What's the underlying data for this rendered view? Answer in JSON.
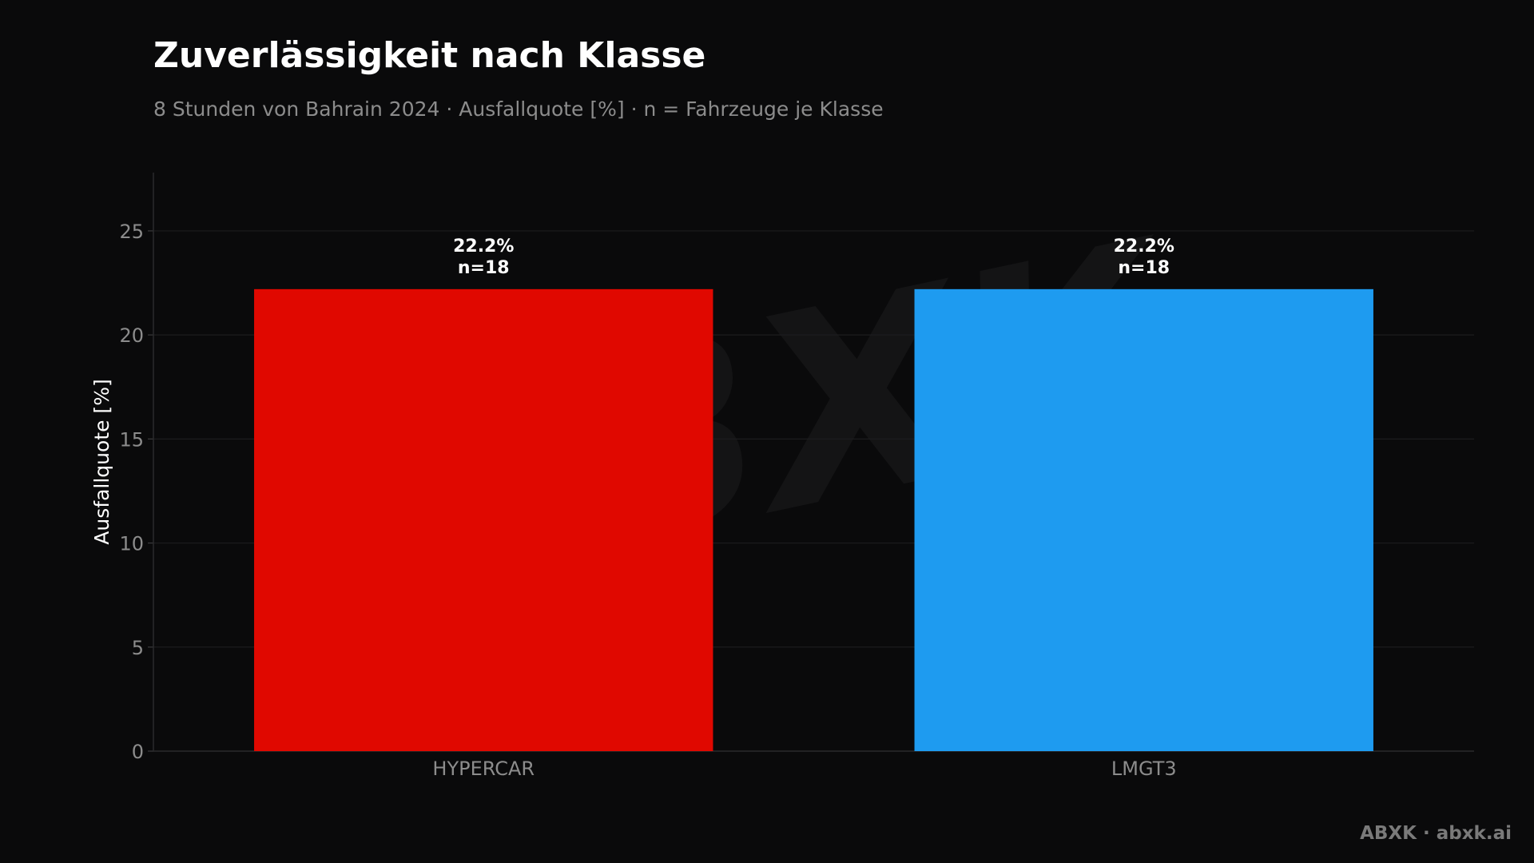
{
  "header": {
    "title": "Zuverlässigkeit nach Klasse",
    "subtitle": "8 Stunden von Bahrain 2024 · Ausfallquote [%] · n = Fahrzeuge je Klasse"
  },
  "footer": {
    "credit": "ABXK · abxk.ai"
  },
  "watermark": {
    "text": "ABXK"
  },
  "colors": {
    "background": "#0a0a0b",
    "hypercar": "#e00800",
    "lmgt3": "#1e9bf0",
    "grid": "#1c1c1e",
    "axis_text": "#8c8c8c",
    "label_text": "#ffffff"
  },
  "chart_data": {
    "type": "bar",
    "title": "Zuverlässigkeit nach Klasse",
    "subtitle": "8 Stunden von Bahrain 2024 · Ausfallquote [%] · n = Fahrzeuge je Klasse",
    "xlabel": "",
    "ylabel": "Ausfallquote [%]",
    "ylim": [
      0,
      27.8
    ],
    "yticks": [
      0,
      5,
      10,
      15,
      20,
      25
    ],
    "grid": true,
    "categories": [
      "HYPERCAR",
      "LMGT3"
    ],
    "values": [
      22.2,
      22.2
    ],
    "bar_colors": [
      "#e00800",
      "#1e9bf0"
    ],
    "data_labels": [
      {
        "value": "22.2%",
        "n": "n=18"
      },
      {
        "value": "22.2%",
        "n": "n=18"
      }
    ]
  }
}
